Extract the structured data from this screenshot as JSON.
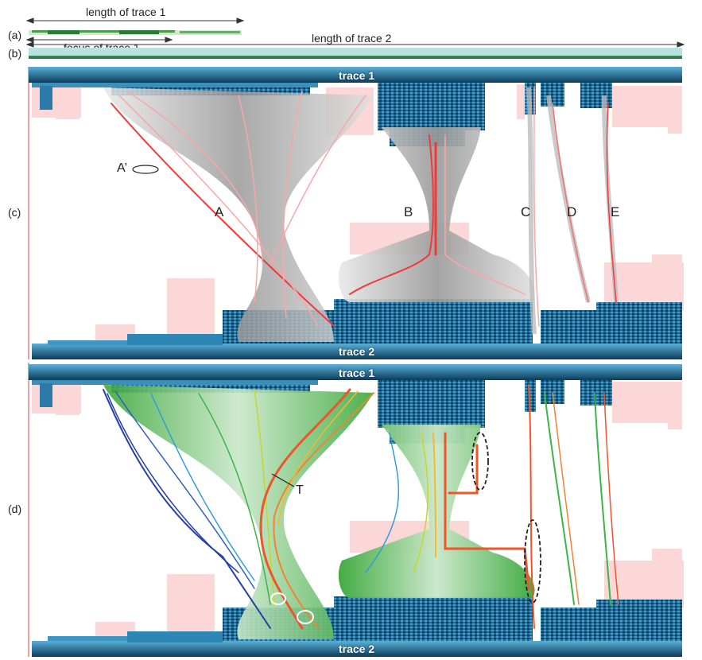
{
  "header": {
    "length_trace1": "length of trace 1",
    "length_trace2": "length of trace 2",
    "focus_trace1": "focus of trace 1"
  },
  "panels": {
    "a": "(a)",
    "b": "(b)",
    "c": "(c)",
    "d": "(d)"
  },
  "traces": {
    "trace1": "trace 1",
    "trace2": "trace 2"
  },
  "bundles": [
    "A",
    "B",
    "C",
    "D",
    "E"
  ],
  "annotations": {
    "a_prime": "A’",
    "t": "T"
  },
  "colors": {
    "icicle_dark": "#0d4a6e",
    "icicle_mid": "#2f8ab8",
    "icicle_light": "#8cc8e0",
    "highlight_pink": "#fbd3d3",
    "edge_red": "#f03a3a",
    "edge_pink": "#f7a7a7",
    "bundle_gray": "#bdbdbd",
    "ramp": [
      "#2740a6",
      "#2f9fd8",
      "#3cb44b",
      "#c8d62a",
      "#f5b82e",
      "#f0542a"
    ]
  }
}
